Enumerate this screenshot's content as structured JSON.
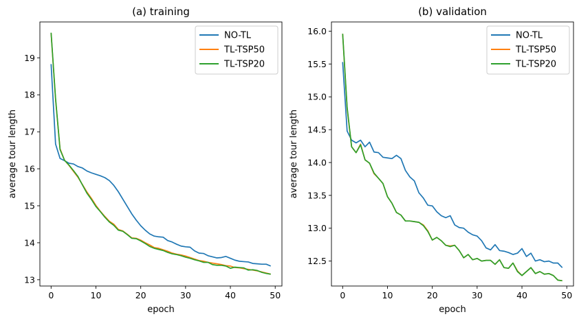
{
  "chart_data": [
    {
      "type": "line",
      "title": "(a) training",
      "xlabel": "epoch",
      "ylabel": "average tour length",
      "xlim": [
        -2.5,
        51.5
      ],
      "ylim": [
        12.83,
        19.97
      ],
      "xticks": [
        0,
        10,
        20,
        30,
        40,
        50
      ],
      "yticks": [
        13,
        14,
        15,
        16,
        17,
        18,
        19
      ],
      "grid": false,
      "legend": "top-right",
      "x": [
        0,
        1,
        2,
        3,
        4,
        5,
        6,
        7,
        8,
        9,
        10,
        11,
        12,
        13,
        14,
        15,
        16,
        17,
        18,
        19,
        20,
        21,
        22,
        23,
        24,
        25,
        26,
        27,
        28,
        29,
        30,
        31,
        32,
        33,
        34,
        35,
        36,
        37,
        38,
        39,
        40,
        41,
        42,
        43,
        44,
        45,
        46,
        47,
        48,
        49
      ],
      "series": [
        {
          "name": "NO-TL",
          "color": "#1f77b4",
          "values": [
            18.83,
            16.67,
            16.28,
            16.22,
            16.15,
            16.13,
            16.06,
            16.02,
            15.94,
            15.89,
            15.85,
            15.81,
            15.76,
            15.68,
            15.55,
            15.38,
            15.18,
            14.98,
            14.78,
            14.61,
            14.46,
            14.34,
            14.24,
            14.18,
            14.16,
            14.15,
            14.06,
            14.02,
            13.96,
            13.91,
            13.89,
            13.88,
            13.78,
            13.72,
            13.71,
            13.65,
            13.62,
            13.59,
            13.6,
            13.63,
            13.58,
            13.53,
            13.5,
            13.49,
            13.48,
            13.44,
            13.43,
            13.42,
            13.42,
            13.37
          ]
        },
        {
          "name": "TL-TSP50",
          "color": "#ff7f0e",
          "values": [
            19.67,
            17.87,
            16.54,
            16.23,
            16.09,
            15.93,
            15.77,
            15.57,
            15.37,
            15.2,
            15.01,
            14.85,
            14.71,
            14.58,
            14.5,
            14.36,
            14.32,
            14.23,
            14.13,
            14.12,
            14.07,
            14.0,
            13.94,
            13.87,
            13.85,
            13.81,
            13.77,
            13.72,
            13.69,
            13.67,
            13.64,
            13.6,
            13.56,
            13.52,
            13.5,
            13.47,
            13.45,
            13.43,
            13.41,
            13.38,
            13.37,
            13.33,
            13.32,
            13.3,
            13.28,
            13.26,
            13.24,
            13.21,
            13.18,
            13.15
          ]
        },
        {
          "name": "TL-TSP20",
          "color": "#2ca02c",
          "values": [
            19.68,
            17.9,
            16.52,
            16.23,
            16.1,
            15.95,
            15.79,
            15.56,
            15.34,
            15.17,
            14.98,
            14.84,
            14.69,
            14.56,
            14.47,
            14.34,
            14.31,
            14.22,
            14.12,
            14.11,
            14.05,
            13.98,
            13.9,
            13.85,
            13.82,
            13.79,
            13.74,
            13.7,
            13.68,
            13.65,
            13.61,
            13.58,
            13.54,
            13.51,
            13.47,
            13.47,
            13.41,
            13.39,
            13.39,
            13.37,
            13.31,
            13.34,
            13.33,
            13.32,
            13.26,
            13.27,
            13.25,
            13.2,
            13.17,
            13.15
          ]
        }
      ]
    },
    {
      "type": "line",
      "title": "(b) validation",
      "xlabel": "epoch",
      "ylabel": "average tour length",
      "xlim": [
        -2.5,
        51.5
      ],
      "ylim": [
        12.12,
        16.14
      ],
      "xticks": [
        0,
        10,
        20,
        30,
        40,
        50
      ],
      "yticks": [
        12.5,
        13.0,
        13.5,
        14.0,
        14.5,
        15.0,
        15.5,
        16.0
      ],
      "grid": false,
      "legend": "top-right",
      "x": [
        0,
        1,
        2,
        3,
        4,
        5,
        6,
        7,
        8,
        9,
        10,
        11,
        12,
        13,
        14,
        15,
        16,
        17,
        18,
        19,
        20,
        21,
        22,
        23,
        24,
        25,
        26,
        27,
        28,
        29,
        30,
        31,
        32,
        33,
        34,
        35,
        36,
        37,
        38,
        39,
        40,
        41,
        42,
        43,
        44,
        45,
        46,
        47,
        48,
        49
      ],
      "series": [
        {
          "name": "NO-TL",
          "color": "#1f77b4",
          "values": [
            15.53,
            14.48,
            14.34,
            14.3,
            14.34,
            14.24,
            14.31,
            14.16,
            14.15,
            14.08,
            14.07,
            14.06,
            14.11,
            14.06,
            13.88,
            13.78,
            13.72,
            13.54,
            13.46,
            13.35,
            13.34,
            13.25,
            13.19,
            13.16,
            13.19,
            13.05,
            13.01,
            13.0,
            12.94,
            12.9,
            12.88,
            12.81,
            12.7,
            12.67,
            12.75,
            12.66,
            12.65,
            12.63,
            12.6,
            12.62,
            12.69,
            12.57,
            12.62,
            12.5,
            12.52,
            12.49,
            12.5,
            12.47,
            12.47,
            12.4
          ]
        },
        {
          "name": "TL-TSP50",
          "color": "#ff7f0e",
          "values": [
            15.96,
            14.82,
            14.24,
            14.15,
            14.28,
            14.04,
            13.99,
            13.83,
            13.76,
            13.68,
            13.48,
            13.38,
            13.24,
            13.2,
            13.11,
            13.11,
            13.1,
            13.09,
            13.05,
            12.96,
            12.82,
            12.86,
            12.81,
            12.74,
            12.73,
            12.74,
            12.66,
            12.55,
            12.6,
            12.52,
            12.54,
            12.5,
            12.51,
            12.51,
            12.45,
            12.52,
            12.4,
            12.39,
            12.47,
            12.35,
            12.28,
            12.34,
            12.4,
            12.31,
            12.34,
            12.3,
            12.31,
            12.28,
            12.21,
            12.2
          ]
        },
        {
          "name": "TL-TSP20",
          "color": "#2ca02c",
          "values": [
            15.96,
            14.84,
            14.24,
            14.15,
            14.27,
            14.04,
            13.99,
            13.84,
            13.76,
            13.68,
            13.48,
            13.38,
            13.24,
            13.2,
            13.11,
            13.11,
            13.1,
            13.09,
            13.04,
            12.95,
            12.82,
            12.86,
            12.81,
            12.74,
            12.72,
            12.74,
            12.66,
            12.55,
            12.6,
            12.52,
            12.54,
            12.5,
            12.51,
            12.51,
            12.45,
            12.52,
            12.4,
            12.39,
            12.47,
            12.34,
            12.28,
            12.34,
            12.4,
            12.31,
            12.34,
            12.3,
            12.31,
            12.28,
            12.21,
            12.2
          ]
        }
      ]
    }
  ]
}
